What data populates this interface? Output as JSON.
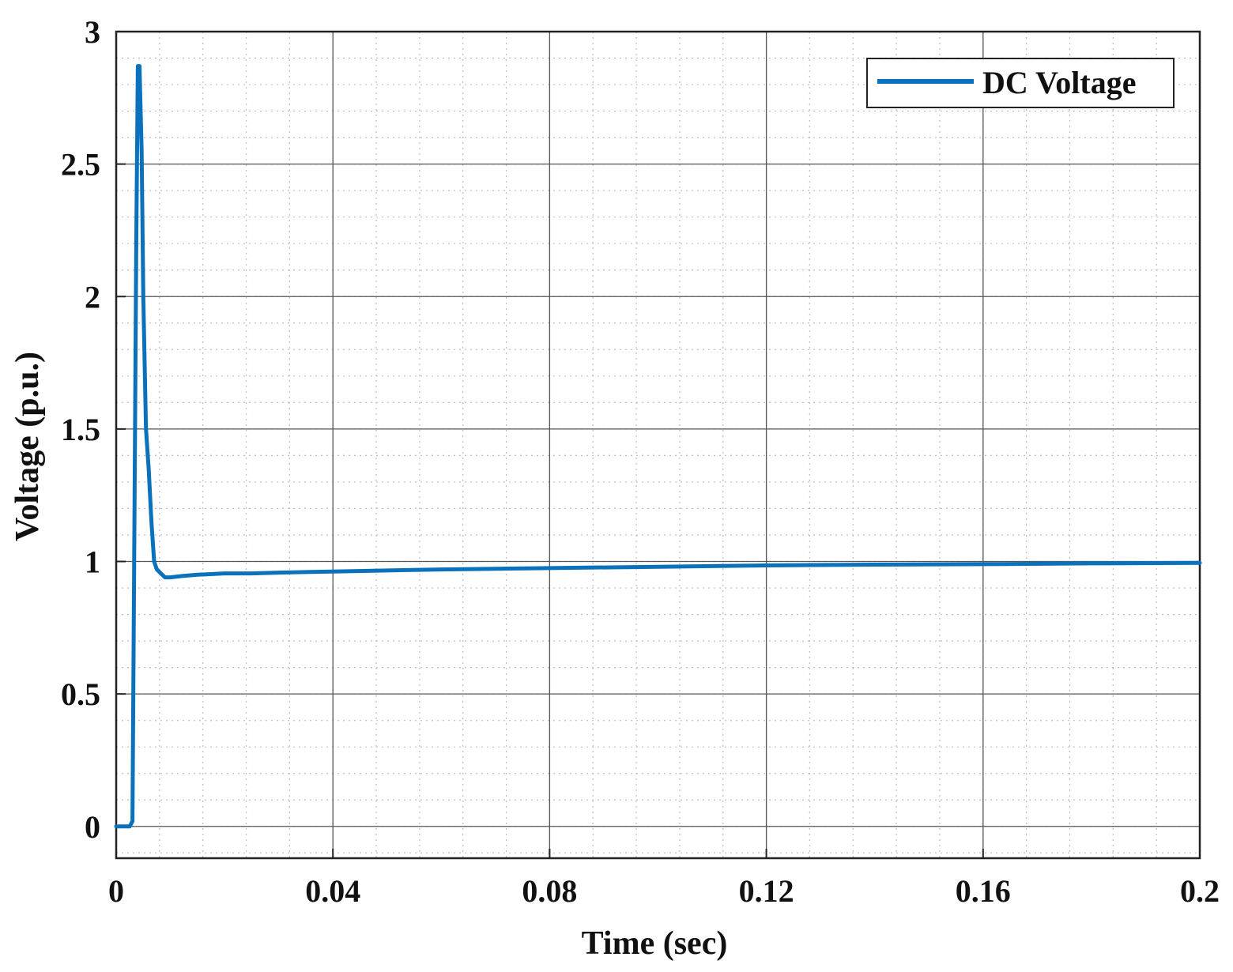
{
  "chart_data": {
    "type": "line",
    "xlabel": "Time (sec)",
    "ylabel": "Voltage (p.u.)",
    "xlim": [
      0,
      0.2
    ],
    "ylim": [
      -0.12,
      3
    ],
    "xticks": [
      0,
      0.04,
      0.08,
      0.12,
      0.16,
      0.2
    ],
    "xtick_labels": [
      "0",
      "0.04",
      "0.08",
      "0.12",
      "0.16",
      "0.2"
    ],
    "yticks": [
      0,
      0.5,
      1,
      1.5,
      2,
      2.5,
      3
    ],
    "ytick_labels": [
      "0",
      "0.5",
      "1",
      "1.5",
      "2",
      "2.5",
      "3"
    ],
    "grid": true,
    "minor_grid": true,
    "legend_position": "top-right",
    "series": [
      {
        "name": "DC Voltage",
        "color": "#0a72bd",
        "x": [
          0,
          0.0025,
          0.003,
          0.0037,
          0.004,
          0.0043,
          0.0047,
          0.005,
          0.0055,
          0.006,
          0.0065,
          0.007,
          0.0075,
          0.008,
          0.009,
          0.01,
          0.012,
          0.015,
          0.02,
          0.025,
          0.03,
          0.04,
          0.05,
          0.06,
          0.08,
          0.1,
          0.12,
          0.14,
          0.16,
          0.18,
          0.2
        ],
        "y": [
          0,
          0,
          0.02,
          2.2,
          2.87,
          2.87,
          2.55,
          2.0,
          1.5,
          1.35,
          1.15,
          1.0,
          0.97,
          0.96,
          0.94,
          0.94,
          0.945,
          0.95,
          0.955,
          0.955,
          0.958,
          0.962,
          0.966,
          0.97,
          0.975,
          0.98,
          0.985,
          0.988,
          0.99,
          0.993,
          0.995
        ]
      }
    ]
  }
}
